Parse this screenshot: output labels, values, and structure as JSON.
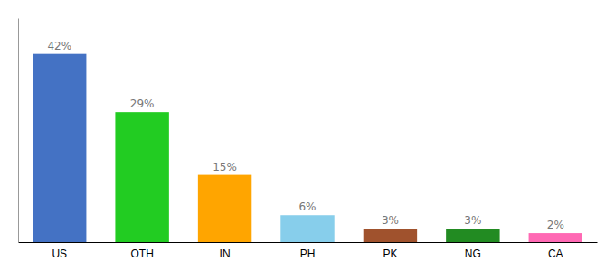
{
  "chart_data": {
    "type": "bar",
    "categories": [
      "US",
      "OTH",
      "IN",
      "PH",
      "PK",
      "NG",
      "CA"
    ],
    "values": [
      42,
      29,
      15,
      6,
      3,
      3,
      2
    ],
    "value_labels": [
      "42%",
      "29%",
      "15%",
      "6%",
      "3%",
      "3%",
      "2%"
    ],
    "colors": [
      "#4472c4",
      "#22cc22",
      "#ffa500",
      "#87ceeb",
      "#a0522d",
      "#228b22",
      "#ff69b4"
    ],
    "ylim": [
      0,
      50
    ],
    "data_labels": true,
    "tick_labels": "x",
    "grid": false
  }
}
